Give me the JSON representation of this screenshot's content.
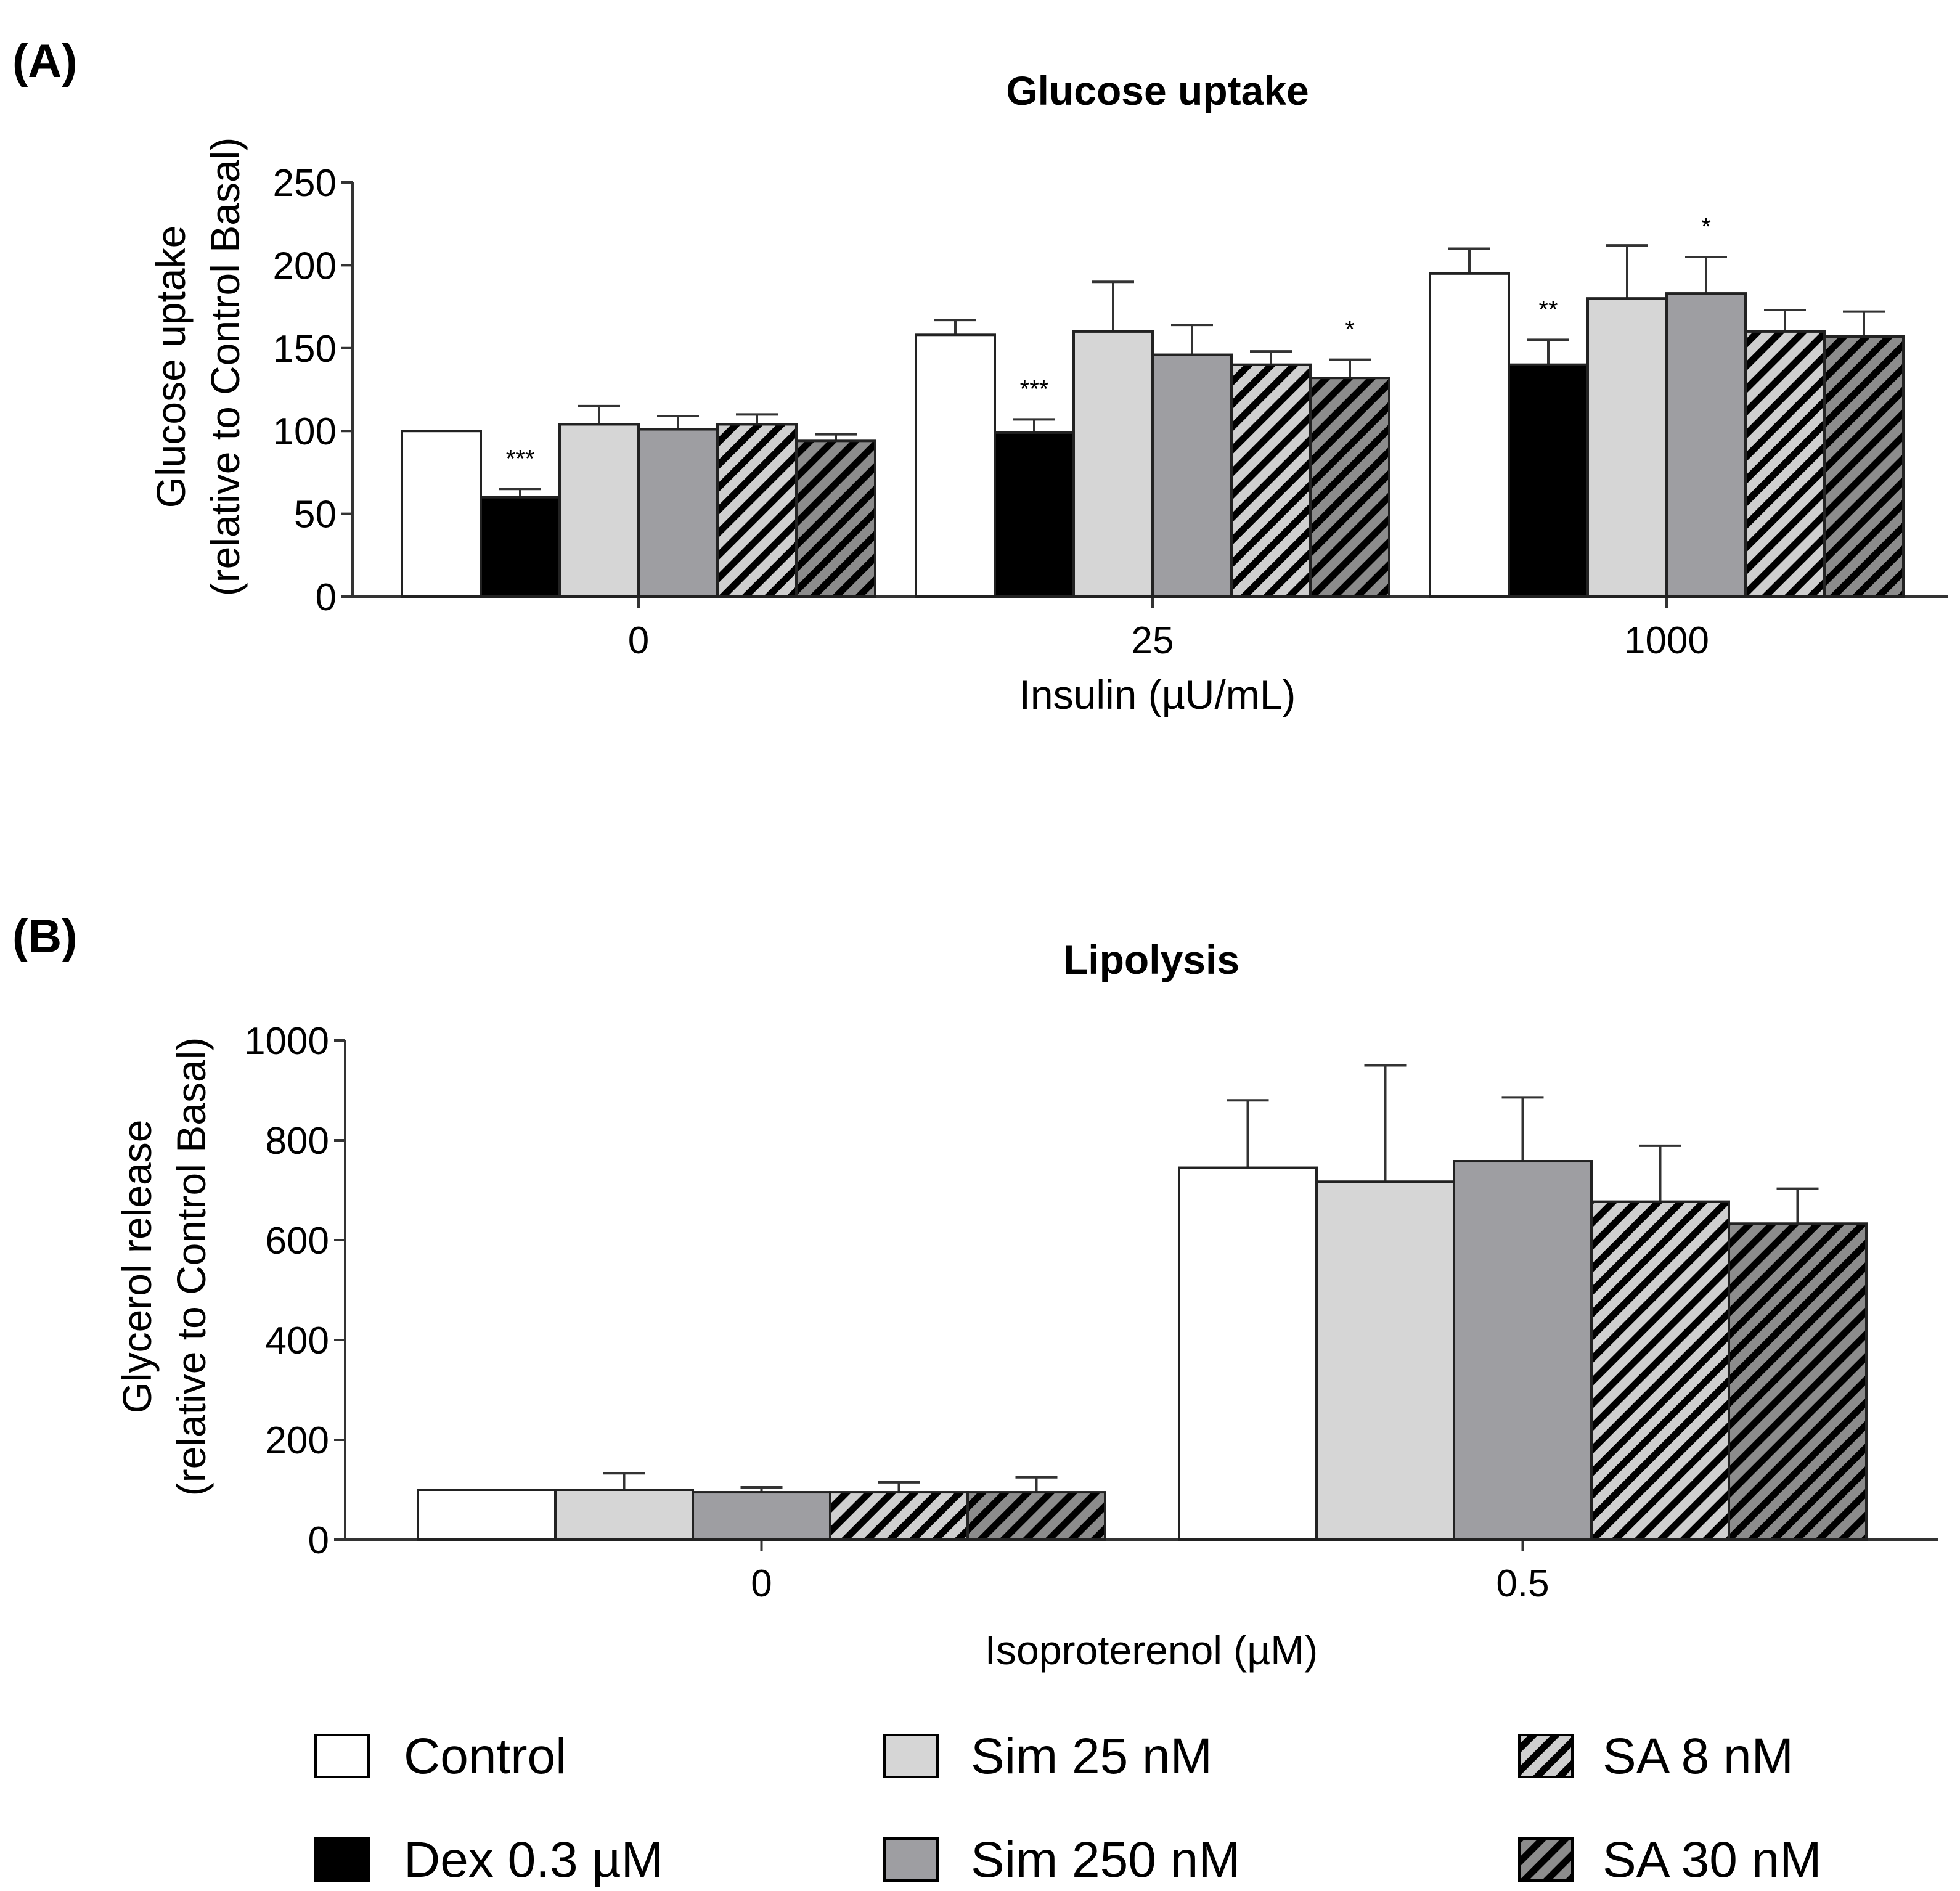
{
  "legend": [
    {
      "key": "control",
      "label": "Control",
      "fill": "#ffffff",
      "hatch": false
    },
    {
      "key": "dex",
      "label": "Dex 0.3 µM",
      "fill": "#000000",
      "hatch": false
    },
    {
      "key": "sim25",
      "label": "Sim 25 nM",
      "fill": "#d6d6d6",
      "hatch": false
    },
    {
      "key": "sim250",
      "label": "Sim 250 nM",
      "fill": "#9e9ea2",
      "hatch": false
    },
    {
      "key": "sa8",
      "label": "SA 8 nM",
      "fill": "#c8c8c8",
      "hatch": true
    },
    {
      "key": "sa30",
      "label": "SA 30 nM",
      "fill": "#8a8a8a",
      "hatch": true
    }
  ],
  "chart_data": [
    {
      "panel_label": "(A)",
      "type": "bar",
      "title": "Glucose uptake",
      "xlabel": "Insulin (µU/mL)",
      "ylabel": [
        "Glucose uptake",
        "(relative to Control Basal)"
      ],
      "ylim": [
        0,
        250
      ],
      "yticks": [
        0,
        50,
        100,
        150,
        200,
        250
      ],
      "categories": [
        "0",
        "25",
        "1000"
      ],
      "series": [
        {
          "name": "Control",
          "key": "control",
          "values": [
            100,
            158,
            195
          ],
          "errors": [
            0,
            9,
            15
          ],
          "sig": [
            "",
            "",
            ""
          ]
        },
        {
          "name": "Dex 0.3 µM",
          "key": "dex",
          "values": [
            60,
            99,
            140
          ],
          "errors": [
            5,
            8,
            15
          ],
          "sig": [
            "***",
            "***",
            "**"
          ]
        },
        {
          "name": "Sim 25 nM",
          "key": "sim25",
          "values": [
            104,
            160,
            180
          ],
          "errors": [
            11,
            30,
            32
          ],
          "sig": [
            "",
            "",
            ""
          ]
        },
        {
          "name": "Sim 250 nM",
          "key": "sim250",
          "values": [
            101,
            146,
            183
          ],
          "errors": [
            8,
            18,
            22
          ],
          "sig": [
            "",
            "",
            "*"
          ]
        },
        {
          "name": "SA 8 nM",
          "key": "sa8",
          "values": [
            104,
            140,
            160
          ],
          "errors": [
            6,
            8,
            13
          ],
          "sig": [
            "",
            "",
            ""
          ]
        },
        {
          "name": "SA 30 nM",
          "key": "sa30",
          "values": [
            94,
            132,
            157
          ],
          "errors": [
            4,
            11,
            15
          ],
          "sig": [
            "",
            "*",
            ""
          ]
        }
      ]
    },
    {
      "panel_label": "(B)",
      "type": "bar",
      "title": "Lipolysis",
      "xlabel": "Isoproterenol (µM)",
      "ylabel": [
        "Glycerol release",
        "(relative to Control Basal)"
      ],
      "ylim": [
        0,
        1000
      ],
      "yticks": [
        0,
        200,
        400,
        600,
        800,
        1000
      ],
      "categories": [
        "0",
        "0.5"
      ],
      "series": [
        {
          "name": "Control",
          "key": "control",
          "values": [
            100,
            745
          ],
          "errors": [
            0,
            135
          ],
          "sig": [
            "",
            ""
          ]
        },
        {
          "name": "Sim 25 nM",
          "key": "sim25",
          "values": [
            100,
            717
          ],
          "errors": [
            33,
            233
          ],
          "sig": [
            "",
            ""
          ]
        },
        {
          "name": "Sim 250 nM",
          "key": "sim250",
          "values": [
            95,
            758
          ],
          "errors": [
            10,
            128
          ],
          "sig": [
            "",
            ""
          ]
        },
        {
          "name": "SA 8 nM",
          "key": "sa8",
          "values": [
            95,
            677
          ],
          "errors": [
            20,
            112
          ],
          "sig": [
            "",
            ""
          ]
        },
        {
          "name": "SA 30 nM",
          "key": "sa30",
          "values": [
            95,
            633
          ],
          "errors": [
            30,
            70
          ],
          "sig": [
            "",
            ""
          ]
        }
      ]
    }
  ]
}
